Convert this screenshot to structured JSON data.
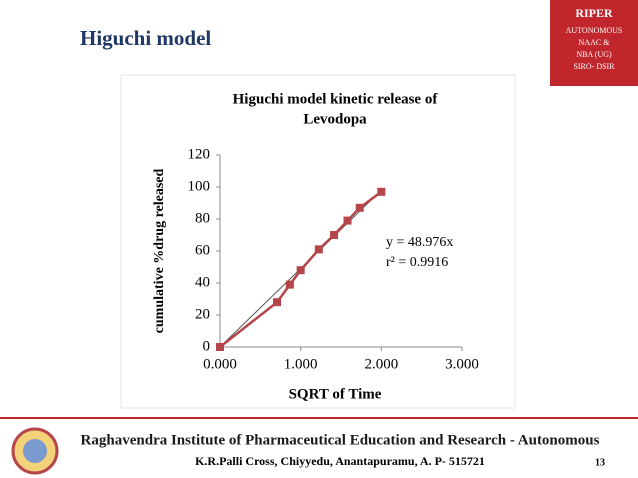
{
  "header": {
    "title": "Higuchi model"
  },
  "badge": {
    "lines": [
      "RIPER",
      "AUTONOMOUS",
      "NAAC &",
      "NBA (UG)",
      "SIRO- DSIR"
    ]
  },
  "footer": {
    "institute": "Raghavendra Institute of Pharmaceutical Education and Research - Autonomous",
    "address": "K.R.Palli Cross, Chiyyedu, Anantapuramu, A. P- 515721",
    "page": "13"
  },
  "chart_data": {
    "type": "scatter-line",
    "title": [
      "Higuchi model kinetic release of",
      "Levodopa"
    ],
    "x_label": "SQRT of Time",
    "y_label": "cumulative %drug released",
    "annotations": [
      "y = 48.976x",
      "r² = 0.9916"
    ],
    "series": [
      {
        "color": "#b5454a",
        "x": [
          0,
          0.707,
          0.866,
          1.0,
          1.225,
          1.414,
          1.581,
          1.732,
          2.0
        ],
        "values": [
          0,
          28,
          39,
          48,
          61,
          70,
          79,
          87,
          97
        ]
      }
    ],
    "trendline": {
      "color": "#555555",
      "x": [
        0,
        2
      ],
      "values": [
        0,
        98
      ]
    },
    "xlim": [
      0,
      3
    ],
    "ylim": [
      0,
      120
    ],
    "xticks": [
      {
        "value": 0,
        "label": "0.000"
      },
      {
        "value": 1,
        "label": "1.000"
      },
      {
        "value": 2,
        "label": "2.000"
      },
      {
        "value": 3,
        "label": "3.000"
      }
    ],
    "yticks": [
      0,
      20,
      40,
      60,
      80,
      100,
      120
    ],
    "grid": false
  }
}
